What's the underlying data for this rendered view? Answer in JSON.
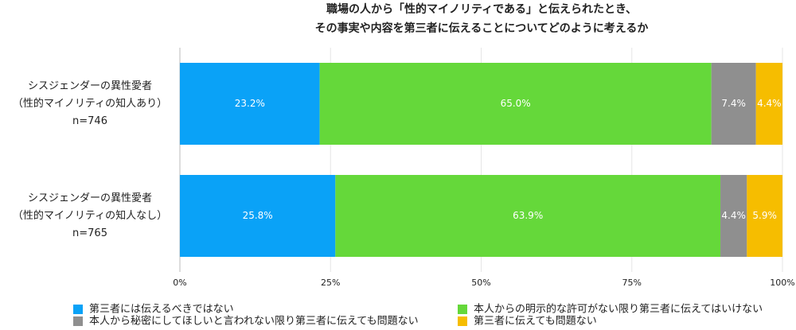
{
  "chart_data": {
    "type": "stacked-bar-horizontal",
    "title": [
      "職場の人から「性的マイノリティである」と伝えられたとき、",
      "その事実や内容を第三者に伝えることについてどのように考えるか"
    ],
    "categories": [
      [
        "シスジェンダーの異性愛者",
        "（性的マイノリティの知人あり）",
        "n=746"
      ],
      [
        "シスジェンダーの異性愛者",
        "（性的マイノリティの知人なし）",
        "n=765"
      ]
    ],
    "series": [
      {
        "name": "第三者には伝えるべきではない",
        "color": "#0aa2f7",
        "values": [
          23.2,
          25.8
        ],
        "value_labels": [
          "23.2%",
          "25.8%"
        ]
      },
      {
        "name": "本人からの明示的な許可がない限り第三者に伝えてはいけない",
        "color": "#65d83a",
        "values": [
          65.0,
          63.9
        ],
        "value_labels": [
          "65.0%",
          "63.9%"
        ]
      },
      {
        "name": "本人から秘密にしてほしいと言われない限り第三者に伝えても問題ない",
        "color": "#8f8f8f",
        "values": [
          7.4,
          4.4
        ],
        "value_labels": [
          "7.4%",
          "4.4%"
        ]
      },
      {
        "name": "第三者に伝えても問題ない",
        "color": "#f6bd00",
        "values": [
          4.4,
          5.9
        ],
        "value_labels": [
          "4.4%",
          "5.9%"
        ]
      }
    ],
    "xlim": [
      0,
      100
    ],
    "xticks": [
      {
        "value": 0,
        "label": "0%"
      },
      {
        "value": 25,
        "label": "25%"
      },
      {
        "value": 50,
        "label": "50%"
      },
      {
        "value": 75,
        "label": "75%"
      },
      {
        "value": 100,
        "label": "100%"
      }
    ],
    "grid": true,
    "legend": "bottom"
  }
}
